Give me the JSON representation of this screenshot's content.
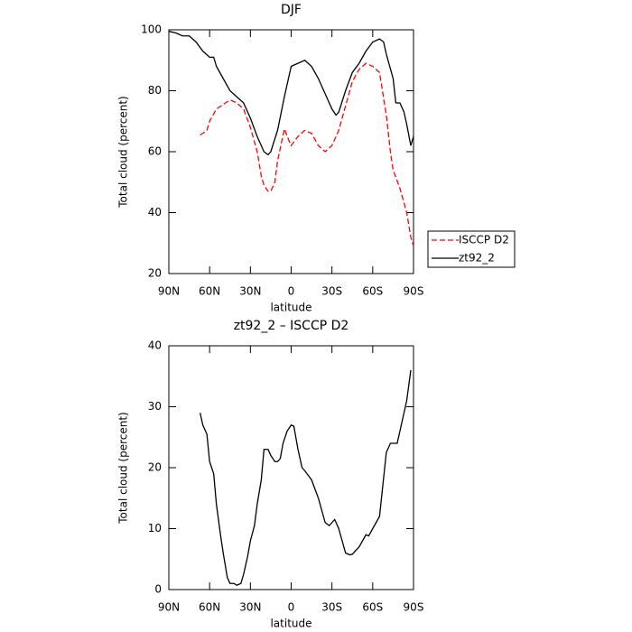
{
  "chart_data": [
    {
      "type": "line",
      "title": "DJF",
      "x_label": "latitude",
      "y_label": "Total cloud (percent)",
      "xlim": [
        90,
        -90
      ],
      "ylim": [
        20,
        100
      ],
      "xticks": [
        {
          "value": 90,
          "label": "90N"
        },
        {
          "value": 60,
          "label": "60N"
        },
        {
          "value": 30,
          "label": "30N"
        },
        0,
        {
          "value": -30,
          "label": "30S"
        },
        {
          "value": -60,
          "label": "60S"
        },
        {
          "value": -90,
          "label": "90S"
        }
      ],
      "yticks": [
        20,
        40,
        60,
        80,
        100
      ],
      "legend": "right",
      "series": [
        {
          "name": "ISCCP D2",
          "color": "#ff0000",
          "dash": "dashed",
          "x": [
            67,
            65,
            62,
            60,
            55,
            50,
            45,
            40,
            35,
            30,
            25,
            22,
            20,
            17,
            15,
            12,
            10,
            5,
            2,
            0,
            -5,
            -10,
            -15,
            -20,
            -25,
            -30,
            -35,
            -40,
            -45,
            -50,
            -55,
            -60,
            -65,
            -70,
            -73,
            -75,
            -80,
            -85,
            -88,
            -90
          ],
          "values": [
            65.5,
            66,
            67,
            70,
            74,
            75.5,
            77,
            76,
            74,
            68,
            60,
            52,
            49,
            47,
            47,
            50,
            57,
            67.5,
            64,
            62,
            65,
            67,
            66,
            62,
            60,
            62,
            67,
            75,
            83,
            87,
            89,
            88,
            86,
            72,
            60,
            54,
            48,
            40,
            32,
            29
          ]
        },
        {
          "name": "zt92_2",
          "color": "#000000",
          "dash": "solid",
          "x": [
            90,
            85,
            80,
            75,
            70,
            65,
            60,
            57,
            55,
            50,
            45,
            40,
            35,
            30,
            25,
            20,
            17,
            15,
            10,
            5,
            0,
            -5,
            -10,
            -15,
            -20,
            -25,
            -30,
            -33,
            -35,
            -40,
            -45,
            -50,
            -55,
            -60,
            -65,
            -68,
            -70,
            -75,
            -77,
            -80,
            -83,
            -85,
            -88,
            -90
          ],
          "values": [
            99.5,
            99,
            98,
            98,
            96,
            93,
            91,
            91,
            88,
            84,
            80,
            78,
            76,
            71,
            65,
            60,
            59,
            60,
            67,
            78,
            88,
            89,
            90,
            88,
            84,
            79,
            74,
            72,
            73,
            80,
            86,
            89,
            93,
            96,
            97,
            96,
            92,
            84,
            76,
            76,
            73,
            69,
            62,
            65
          ]
        }
      ]
    },
    {
      "type": "line",
      "title": "zt92_2 – ISCCP D2",
      "x_label": "latitude",
      "y_label": "Total cloud (percent)",
      "xlim": [
        90,
        -90
      ],
      "ylim": [
        0,
        40
      ],
      "xticks": [
        {
          "value": 90,
          "label": "90N"
        },
        {
          "value": 60,
          "label": "60N"
        },
        {
          "value": 30,
          "label": "30N"
        },
        0,
        {
          "value": -30,
          "label": "30S"
        },
        {
          "value": -60,
          "label": "60S"
        },
        {
          "value": -90,
          "label": "90S"
        }
      ],
      "yticks": [
        0,
        10,
        20,
        30,
        40
      ],
      "series": [
        {
          "color": "#000000",
          "dash": "solid",
          "x": [
            67,
            65,
            62,
            60,
            57,
            55,
            52,
            50,
            47,
            45,
            42,
            40,
            37,
            35,
            32,
            30,
            27,
            25,
            22,
            20,
            17,
            15,
            12,
            10,
            8,
            6,
            3,
            0,
            -2,
            -5,
            -8,
            -10,
            -15,
            -20,
            -25,
            -28,
            -32,
            -35,
            -40,
            -43,
            -45,
            -50,
            -55,
            -57,
            -60,
            -65,
            -70,
            -73,
            -75,
            -78,
            -82,
            -85,
            -88
          ],
          "values": [
            29,
            27,
            25.5,
            21,
            19,
            14,
            9,
            6,
            2,
            1,
            1,
            0.7,
            1,
            2.5,
            5.5,
            8,
            10.5,
            14,
            18,
            23,
            23,
            22,
            21,
            21,
            21.5,
            24,
            26,
            27,
            26.8,
            23,
            20,
            19.5,
            18,
            15,
            11,
            10.5,
            11.5,
            10,
            6,
            5.7,
            5.8,
            7,
            9,
            8.8,
            10,
            12,
            22.5,
            24,
            24,
            24,
            28,
            31,
            36
          ]
        }
      ]
    }
  ]
}
